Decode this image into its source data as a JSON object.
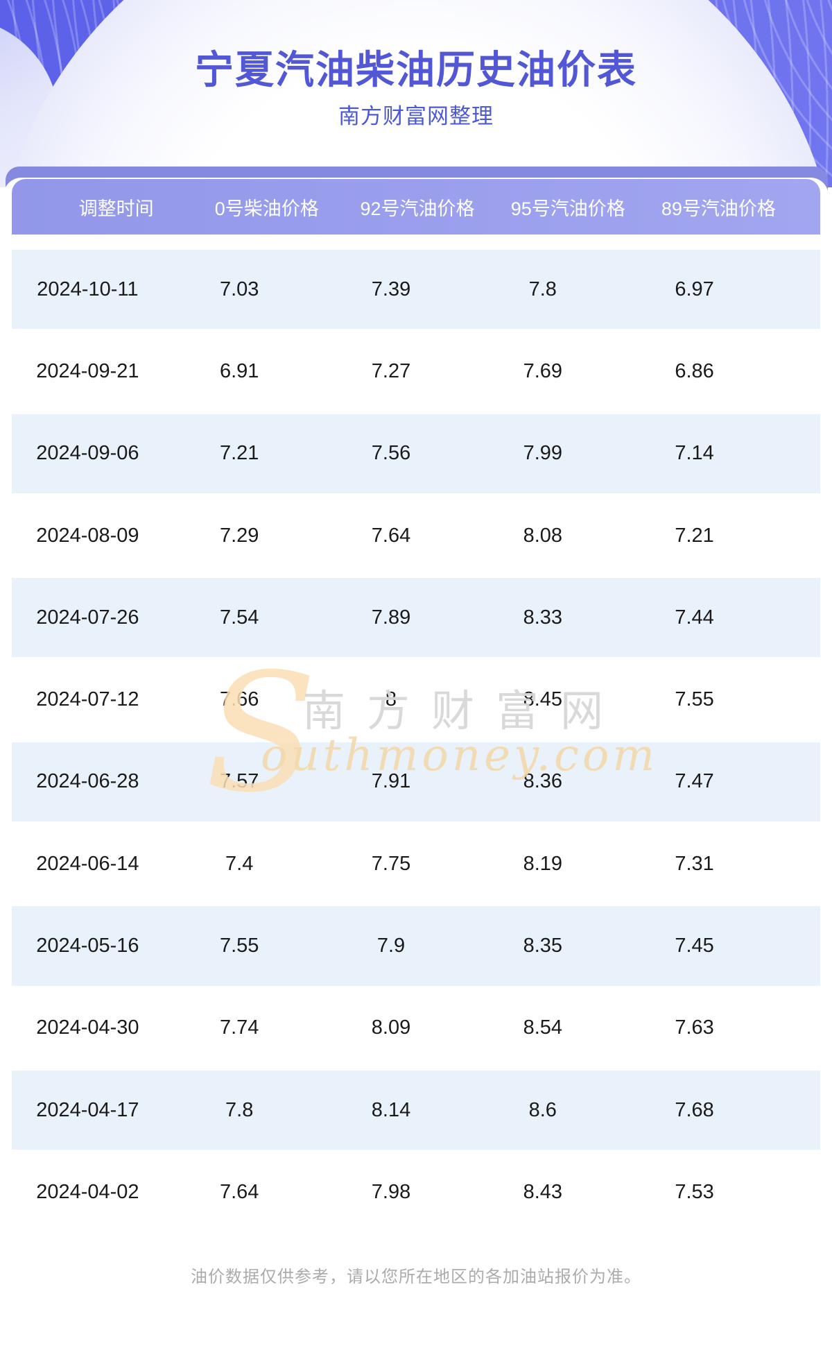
{
  "header": {
    "title": "宁夏汽油柴油历史油价表",
    "subtitle": "南方财富网整理"
  },
  "table": {
    "columns": [
      "调整时间",
      "0号柴油价格",
      "92号汽油价格",
      "95号汽油价格",
      "89号汽油价格"
    ],
    "rows": [
      [
        "2024-10-11",
        "7.03",
        "7.39",
        "7.8",
        "6.97"
      ],
      [
        "2024-09-21",
        "6.91",
        "7.27",
        "7.69",
        "6.86"
      ],
      [
        "2024-09-06",
        "7.21",
        "7.56",
        "7.99",
        "7.14"
      ],
      [
        "2024-08-09",
        "7.29",
        "7.64",
        "8.08",
        "7.21"
      ],
      [
        "2024-07-26",
        "7.54",
        "7.89",
        "8.33",
        "7.44"
      ],
      [
        "2024-07-12",
        "7.66",
        "8",
        "8.45",
        "7.55"
      ],
      [
        "2024-06-28",
        "7.57",
        "7.91",
        "8.36",
        "7.47"
      ],
      [
        "2024-06-14",
        "7.4",
        "7.75",
        "8.19",
        "7.31"
      ],
      [
        "2024-05-16",
        "7.55",
        "7.9",
        "8.35",
        "7.45"
      ],
      [
        "2024-04-30",
        "7.74",
        "8.09",
        "8.54",
        "7.63"
      ],
      [
        "2024-04-17",
        "7.8",
        "8.14",
        "8.6",
        "7.68"
      ],
      [
        "2024-04-02",
        "7.64",
        "7.98",
        "8.43",
        "7.53"
      ]
    ]
  },
  "watermark": {
    "initial": "S",
    "cn": "南方财富网",
    "en": "outhmoney.com"
  },
  "footer": {
    "note": "油价数据仅供参考，请以您所在地区的各加油站报价为准。"
  },
  "colors": {
    "banner_base": "#666cec",
    "band": "#858ae0",
    "table_header": "#9aa0ec",
    "row_alt": "#e9f1fa",
    "title_text": "#5257d5",
    "subtitle_text": "#4d58d6",
    "body_text": "#1a1a1a",
    "footer_text": "#ababab",
    "watermark_gray": "#d8d8d8",
    "watermark_orange": "#f4d9ab"
  }
}
